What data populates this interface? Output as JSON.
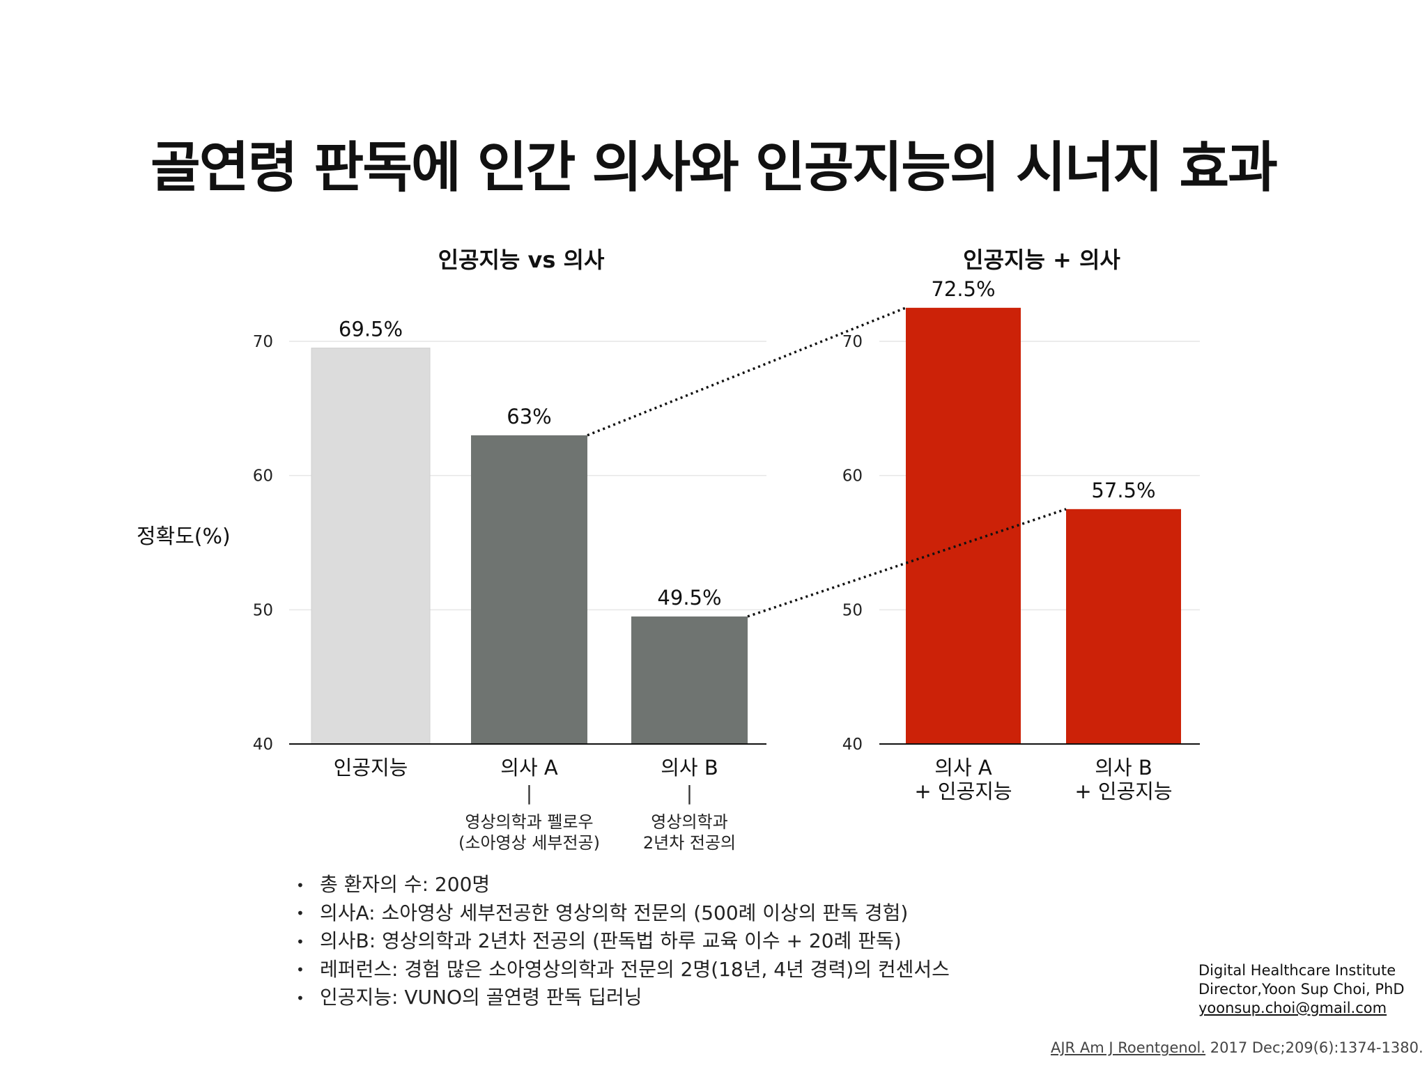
{
  "title": "골연령 판독에 인간 의사와 인공지능의 시너지 효과",
  "chart_data": [
    {
      "type": "bar",
      "title": "인공지능 vs 의사",
      "ylabel": "정확도(%)",
      "ylim": [
        40,
        70
      ],
      "yticks": [
        "40",
        "50",
        "60",
        "70"
      ],
      "categories": [
        "인공지능",
        "의사 A",
        "의사 B"
      ],
      "values": [
        69.5,
        63,
        49.5
      ],
      "value_labels": [
        "69.5%",
        "63%",
        "49.5%"
      ],
      "sublabels": [
        null,
        {
          "bar": "|",
          "line1": "영상의학과 펠로우",
          "line2": "(소아영상 세부전공)"
        },
        {
          "bar": "|",
          "line1": "영상의학과",
          "line2": "2년차 전공의"
        }
      ],
      "colors": [
        "#dcdcdc",
        "#6f7471",
        "#6f7471"
      ]
    },
    {
      "type": "bar",
      "title": "인공지능 + 의사",
      "ylim": [
        40,
        70
      ],
      "yticks": [
        "40",
        "50",
        "60",
        "70"
      ],
      "categories": [
        [
          "의사 A",
          "+ 인공지능"
        ],
        [
          "의사 B",
          "+ 인공지능"
        ]
      ],
      "values": [
        72.5,
        57.5
      ],
      "value_labels": [
        "72.5%",
        "57.5%"
      ],
      "colors": [
        "#cc2208",
        "#cc2208"
      ]
    }
  ],
  "notes": [
    "총 환자의 수: 200명",
    "의사A: 소아영상 세부전공한 영상의학 전문의 (500례 이상의 판독 경험)",
    "의사B: 영상의학과 2년차 전공의 (판독법 하루 교육 이수 + 20례 판독)",
    "레퍼런스: 경험 많은 소아영상의학과 전문의 2명(18년, 4년 경력)의 컨센서스",
    "인공지능:  VUNO의 골연령 판독 딥러닝"
  ],
  "bullet": "•",
  "credit": {
    "line1": "Digital Healthcare Institute",
    "line2": "Director,Yoon Sup Choi, PhD",
    "email": "yoonsup.choi@gmail.com"
  },
  "citation": {
    "journal": "AJR Am J Roentgenol.",
    "rest": " 2017 Dec;209(6):1374-1380."
  }
}
